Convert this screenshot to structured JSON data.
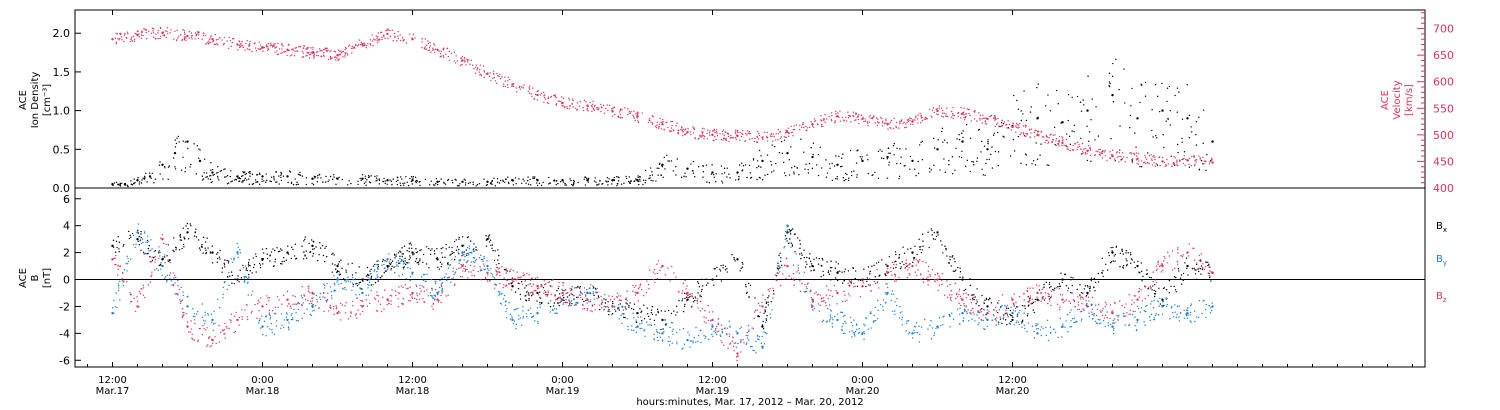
{
  "chart_data": [
    {
      "type": "scatter",
      "panel": "top",
      "ylabel_left": [
        "ACE",
        "Ion Density",
        "[cm⁻³]"
      ],
      "ylabel_right": [
        "ACE",
        "Velocity",
        "[km/s]"
      ],
      "ylim_left": [
        0.0,
        2.3
      ],
      "ylim_right": [
        400,
        735
      ],
      "yticks_left": [
        "0.0",
        "0.5",
        "1.0",
        "1.5",
        "2.0"
      ],
      "yticks_right": [
        "400",
        "450",
        "500",
        "550",
        "600",
        "650",
        "700"
      ],
      "colors": {
        "density": "#000000",
        "velocity": "#e0335d"
      },
      "series": [
        {
          "axis": "left",
          "x_hours": [
            0,
            1,
            2,
            3,
            4,
            5,
            6,
            7,
            8,
            10,
            12,
            14,
            16,
            18,
            20,
            22,
            24,
            26,
            28,
            30,
            32,
            34,
            36,
            38,
            40,
            42,
            44,
            46,
            48,
            50,
            52,
            54,
            56,
            58,
            60,
            62,
            64,
            66,
            68,
            70,
            72,
            74,
            76,
            78,
            80,
            82,
            84,
            86,
            88
          ],
          "values": [
            0.05,
            0.05,
            0.1,
            0.15,
            0.3,
            0.45,
            0.6,
            0.35,
            0.2,
            0.15,
            0.15,
            0.15,
            0.12,
            0.12,
            0.12,
            0.1,
            0.1,
            0.08,
            0.08,
            0.08,
            0.1,
            0.1,
            0.1,
            0.1,
            0.1,
            0.1,
            0.3,
            0.25,
            0.2,
            0.2,
            0.35,
            0.45,
            0.4,
            0.3,
            0.35,
            0.4,
            0.35,
            0.5,
            0.6,
            0.5,
            0.8,
            0.9,
            0.85,
            1.0,
            1.2,
            0.9,
            1.0,
            0.9,
            0.6
          ]
        },
        {
          "axis": "right",
          "x_hours": [
            0,
            2,
            4,
            6,
            8,
            10,
            12,
            14,
            16,
            18,
            20,
            22,
            24,
            26,
            28,
            30,
            32,
            34,
            36,
            38,
            40,
            42,
            44,
            46,
            48,
            50,
            52,
            54,
            56,
            58,
            60,
            62,
            64,
            66,
            68,
            70,
            72,
            74,
            76,
            78,
            80,
            82,
            84,
            86,
            88
          ],
          "values": [
            680,
            688,
            692,
            686,
            680,
            670,
            665,
            660,
            655,
            650,
            670,
            690,
            680,
            660,
            640,
            615,
            595,
            575,
            560,
            555,
            545,
            535,
            520,
            505,
            500,
            498,
            495,
            505,
            520,
            535,
            530,
            520,
            525,
            545,
            540,
            530,
            515,
            500,
            485,
            470,
            460,
            455,
            450,
            452,
            448
          ]
        }
      ]
    },
    {
      "type": "scatter",
      "panel": "bottom",
      "ylabel": [
        "ACE",
        "B",
        "[nT]"
      ],
      "ylim": [
        -6.5,
        6.8
      ],
      "yticks": [
        "-6",
        "-4",
        "-2",
        "0",
        "2",
        "4",
        "6"
      ],
      "legend": [
        {
          "name": "B",
          "sub": "x",
          "color": "#000000"
        },
        {
          "name": "B",
          "sub": "y",
          "color": "#1a7fd6"
        },
        {
          "name": "B",
          "sub": "z",
          "color": "#e0335d"
        }
      ],
      "series": [
        {
          "name": "Bx",
          "color": "#000000",
          "x_hours": [
            0,
            2,
            4,
            6,
            8,
            10,
            12,
            14,
            16,
            18,
            20,
            22,
            24,
            26,
            28,
            30,
            32,
            34,
            36,
            38,
            40,
            42,
            44,
            46,
            48,
            50,
            52,
            54,
            56,
            58,
            60,
            62,
            64,
            66,
            68,
            70,
            72,
            74,
            76,
            78,
            80,
            82,
            84,
            86,
            88
          ],
          "values": [
            2.5,
            3.0,
            1.5,
            3.5,
            2.0,
            0.0,
            1.5,
            2.0,
            2.5,
            1.0,
            0.0,
            1.0,
            2.0,
            1.5,
            2.5,
            3.0,
            -0.5,
            -1.0,
            -1.5,
            -1.0,
            -2.0,
            -2.5,
            -3.0,
            -1.5,
            0.0,
            1.5,
            -3.5,
            3.5,
            1.0,
            0.5,
            0.0,
            1.0,
            2.0,
            3.5,
            0.0,
            -2.0,
            -3.0,
            -1.5,
            0.0,
            -1.0,
            2.0,
            1.0,
            -1.5,
            1.0,
            0.5
          ]
        },
        {
          "name": "By",
          "color": "#1a7fd6",
          "x_hours": [
            0,
            2,
            4,
            6,
            8,
            10,
            12,
            14,
            16,
            18,
            20,
            22,
            24,
            26,
            28,
            30,
            32,
            34,
            36,
            38,
            40,
            42,
            44,
            46,
            48,
            50,
            52,
            54,
            56,
            58,
            60,
            62,
            64,
            66,
            68,
            70,
            72,
            74,
            76,
            78,
            80,
            82,
            84,
            86,
            88
          ],
          "values": [
            -2.5,
            3.5,
            1.0,
            -2.0,
            -3.0,
            2.0,
            -3.5,
            -3.0,
            -2.0,
            0.0,
            -1.0,
            1.5,
            0.5,
            -1.0,
            2.0,
            1.0,
            -3.0,
            -2.5,
            -1.5,
            -1.0,
            -2.0,
            -3.5,
            -4.0,
            -4.5,
            -3.5,
            -4.0,
            -5.0,
            4.0,
            -2.0,
            -3.0,
            -4.0,
            -1.0,
            -4.0,
            -3.5,
            -2.5,
            -3.0,
            -2.5,
            -4.0,
            -3.5,
            -2.0,
            -3.5,
            -3.0,
            -2.0,
            -2.5,
            -2.0
          ]
        },
        {
          "name": "Bz",
          "color": "#e0335d",
          "x_hours": [
            0,
            2,
            4,
            6,
            8,
            10,
            12,
            14,
            16,
            18,
            20,
            22,
            24,
            26,
            28,
            30,
            32,
            34,
            36,
            38,
            40,
            42,
            44,
            46,
            48,
            50,
            52,
            54,
            56,
            58,
            60,
            62,
            64,
            66,
            68,
            70,
            72,
            74,
            76,
            78,
            80,
            82,
            84,
            86,
            88
          ],
          "values": [
            1.5,
            -2.0,
            3.0,
            -3.5,
            -4.5,
            -3.0,
            -2.0,
            -1.5,
            -1.0,
            -2.5,
            -2.0,
            -1.5,
            -1.0,
            -1.5,
            1.0,
            0.5,
            0.0,
            -0.5,
            -1.0,
            -1.5,
            -2.0,
            -1.0,
            1.0,
            -1.0,
            -3.0,
            -5.5,
            -2.0,
            1.0,
            -1.5,
            -1.0,
            -0.5,
            0.5,
            1.0,
            0.0,
            -1.5,
            -2.5,
            -1.5,
            -1.0,
            -1.5,
            -2.0,
            -2.5,
            -1.5,
            1.0,
            2.0,
            0.5
          ]
        }
      ]
    }
  ],
  "x_axis": {
    "xlim_hours": [
      -3,
      105
    ],
    "ticks": [
      {
        "hour": 0,
        "time": "12:00",
        "date": "Mar.17"
      },
      {
        "hour": 12,
        "time": "0:00",
        "date": "Mar.18"
      },
      {
        "hour": 24,
        "time": "12:00",
        "date": "Mar.18"
      },
      {
        "hour": 36,
        "time": "0:00",
        "date": "Mar.19"
      },
      {
        "hour": 48,
        "time": "12:00",
        "date": "Mar.19"
      },
      {
        "hour": 60,
        "time": "0:00",
        "date": "Mar.20"
      },
      {
        "hour": 72,
        "time": "12:00",
        "date": "Mar.20"
      }
    ],
    "title": "hours:minutes, Mar. 17, 2012 – Mar. 20, 2012"
  }
}
